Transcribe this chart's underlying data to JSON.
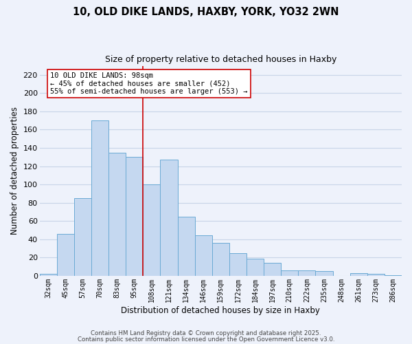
{
  "title": "10, OLD DIKE LANDS, HAXBY, YORK, YO32 2WN",
  "subtitle": "Size of property relative to detached houses in Haxby",
  "xlabel": "Distribution of detached houses by size in Haxby",
  "ylabel": "Number of detached properties",
  "bar_labels": [
    "32sqm",
    "45sqm",
    "57sqm",
    "70sqm",
    "83sqm",
    "95sqm",
    "108sqm",
    "121sqm",
    "134sqm",
    "146sqm",
    "159sqm",
    "172sqm",
    "184sqm",
    "197sqm",
    "210sqm",
    "222sqm",
    "235sqm",
    "248sqm",
    "261sqm",
    "273sqm",
    "286sqm"
  ],
  "bar_values": [
    2,
    46,
    85,
    170,
    135,
    130,
    100,
    127,
    65,
    44,
    36,
    25,
    19,
    14,
    6,
    6,
    5,
    0,
    3,
    2,
    1
  ],
  "bar_color": "#c5d8f0",
  "bar_edge_color": "#6aaad4",
  "vline_color": "#cc0000",
  "annotation_title": "10 OLD DIKE LANDS: 98sqm",
  "annotation_line1": "← 45% of detached houses are smaller (452)",
  "annotation_line2": "55% of semi-detached houses are larger (553) →",
  "annotation_box_color": "#ffffff",
  "annotation_box_edge": "#cc0000",
  "ylim": [
    0,
    230
  ],
  "yticks": [
    0,
    20,
    40,
    60,
    80,
    100,
    120,
    140,
    160,
    180,
    200,
    220
  ],
  "footer1": "Contains HM Land Registry data © Crown copyright and database right 2025.",
  "footer2": "Contains public sector information licensed under the Open Government Licence v3.0.",
  "bg_color": "#eef2fb",
  "grid_color": "#c8d4e8"
}
